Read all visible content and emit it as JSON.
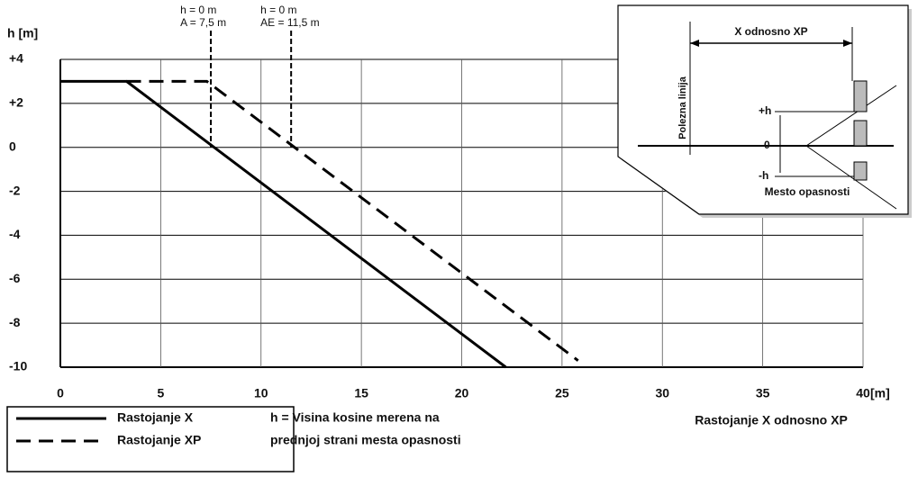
{
  "chart_data": {
    "type": "line",
    "y_label": "h [m]",
    "x_unit": "[m]",
    "x_label": "Rastojanje X odnosno XP",
    "xlim": [
      0,
      40
    ],
    "xticks": [
      0,
      5,
      10,
      15,
      20,
      25,
      30,
      35,
      40
    ],
    "ylim": [
      -10,
      4
    ],
    "yticks": [
      {
        "value": 4,
        "label": "+4"
      },
      {
        "value": 2,
        "label": "+2"
      },
      0,
      -2,
      -4,
      -6,
      -8,
      -10
    ],
    "grid": true,
    "series": [
      {
        "name": "Rastojanje X",
        "color": "#000000",
        "dash": false,
        "x": [
          0,
          3.3,
          22.2
        ],
        "values": [
          3,
          3,
          -10
        ]
      },
      {
        "name": "Rastojanje XP",
        "color": "#000000",
        "dash": true,
        "x": [
          3.3,
          7.3,
          25.8
        ],
        "values": [
          3,
          3,
          -9.7
        ]
      }
    ],
    "annotations": [
      {
        "x": 7.5,
        "lines": [
          "h = 0 m",
          "A = 7,5 m"
        ]
      },
      {
        "x": 11.5,
        "lines": [
          "h = 0 m",
          "AE = 11,5 m"
        ]
      }
    ],
    "note": [
      "h = Visina kosine merena na",
      "prednjoj strani mesta opasnosti"
    ],
    "inset": {
      "distance": "X odnosno XP",
      "line": "Polezna linija",
      "plus": "+h",
      "zero": "0",
      "minus": "-h",
      "place": "Mesto opasnosti"
    }
  }
}
